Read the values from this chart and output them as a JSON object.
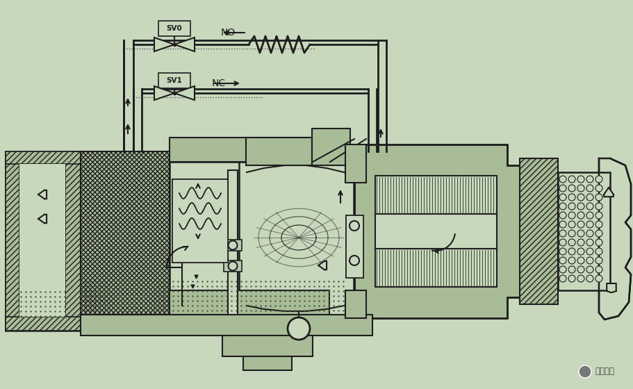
{
  "bg_color": "#c8d8bc",
  "line_color": "#1e1e1e",
  "hatch_fill": "#a8bc98",
  "SV0_label": "SV0",
  "SV1_label": "SV1",
  "NO_label": "NO",
  "NC_label": "NC",
  "watermark": "制冷百科"
}
